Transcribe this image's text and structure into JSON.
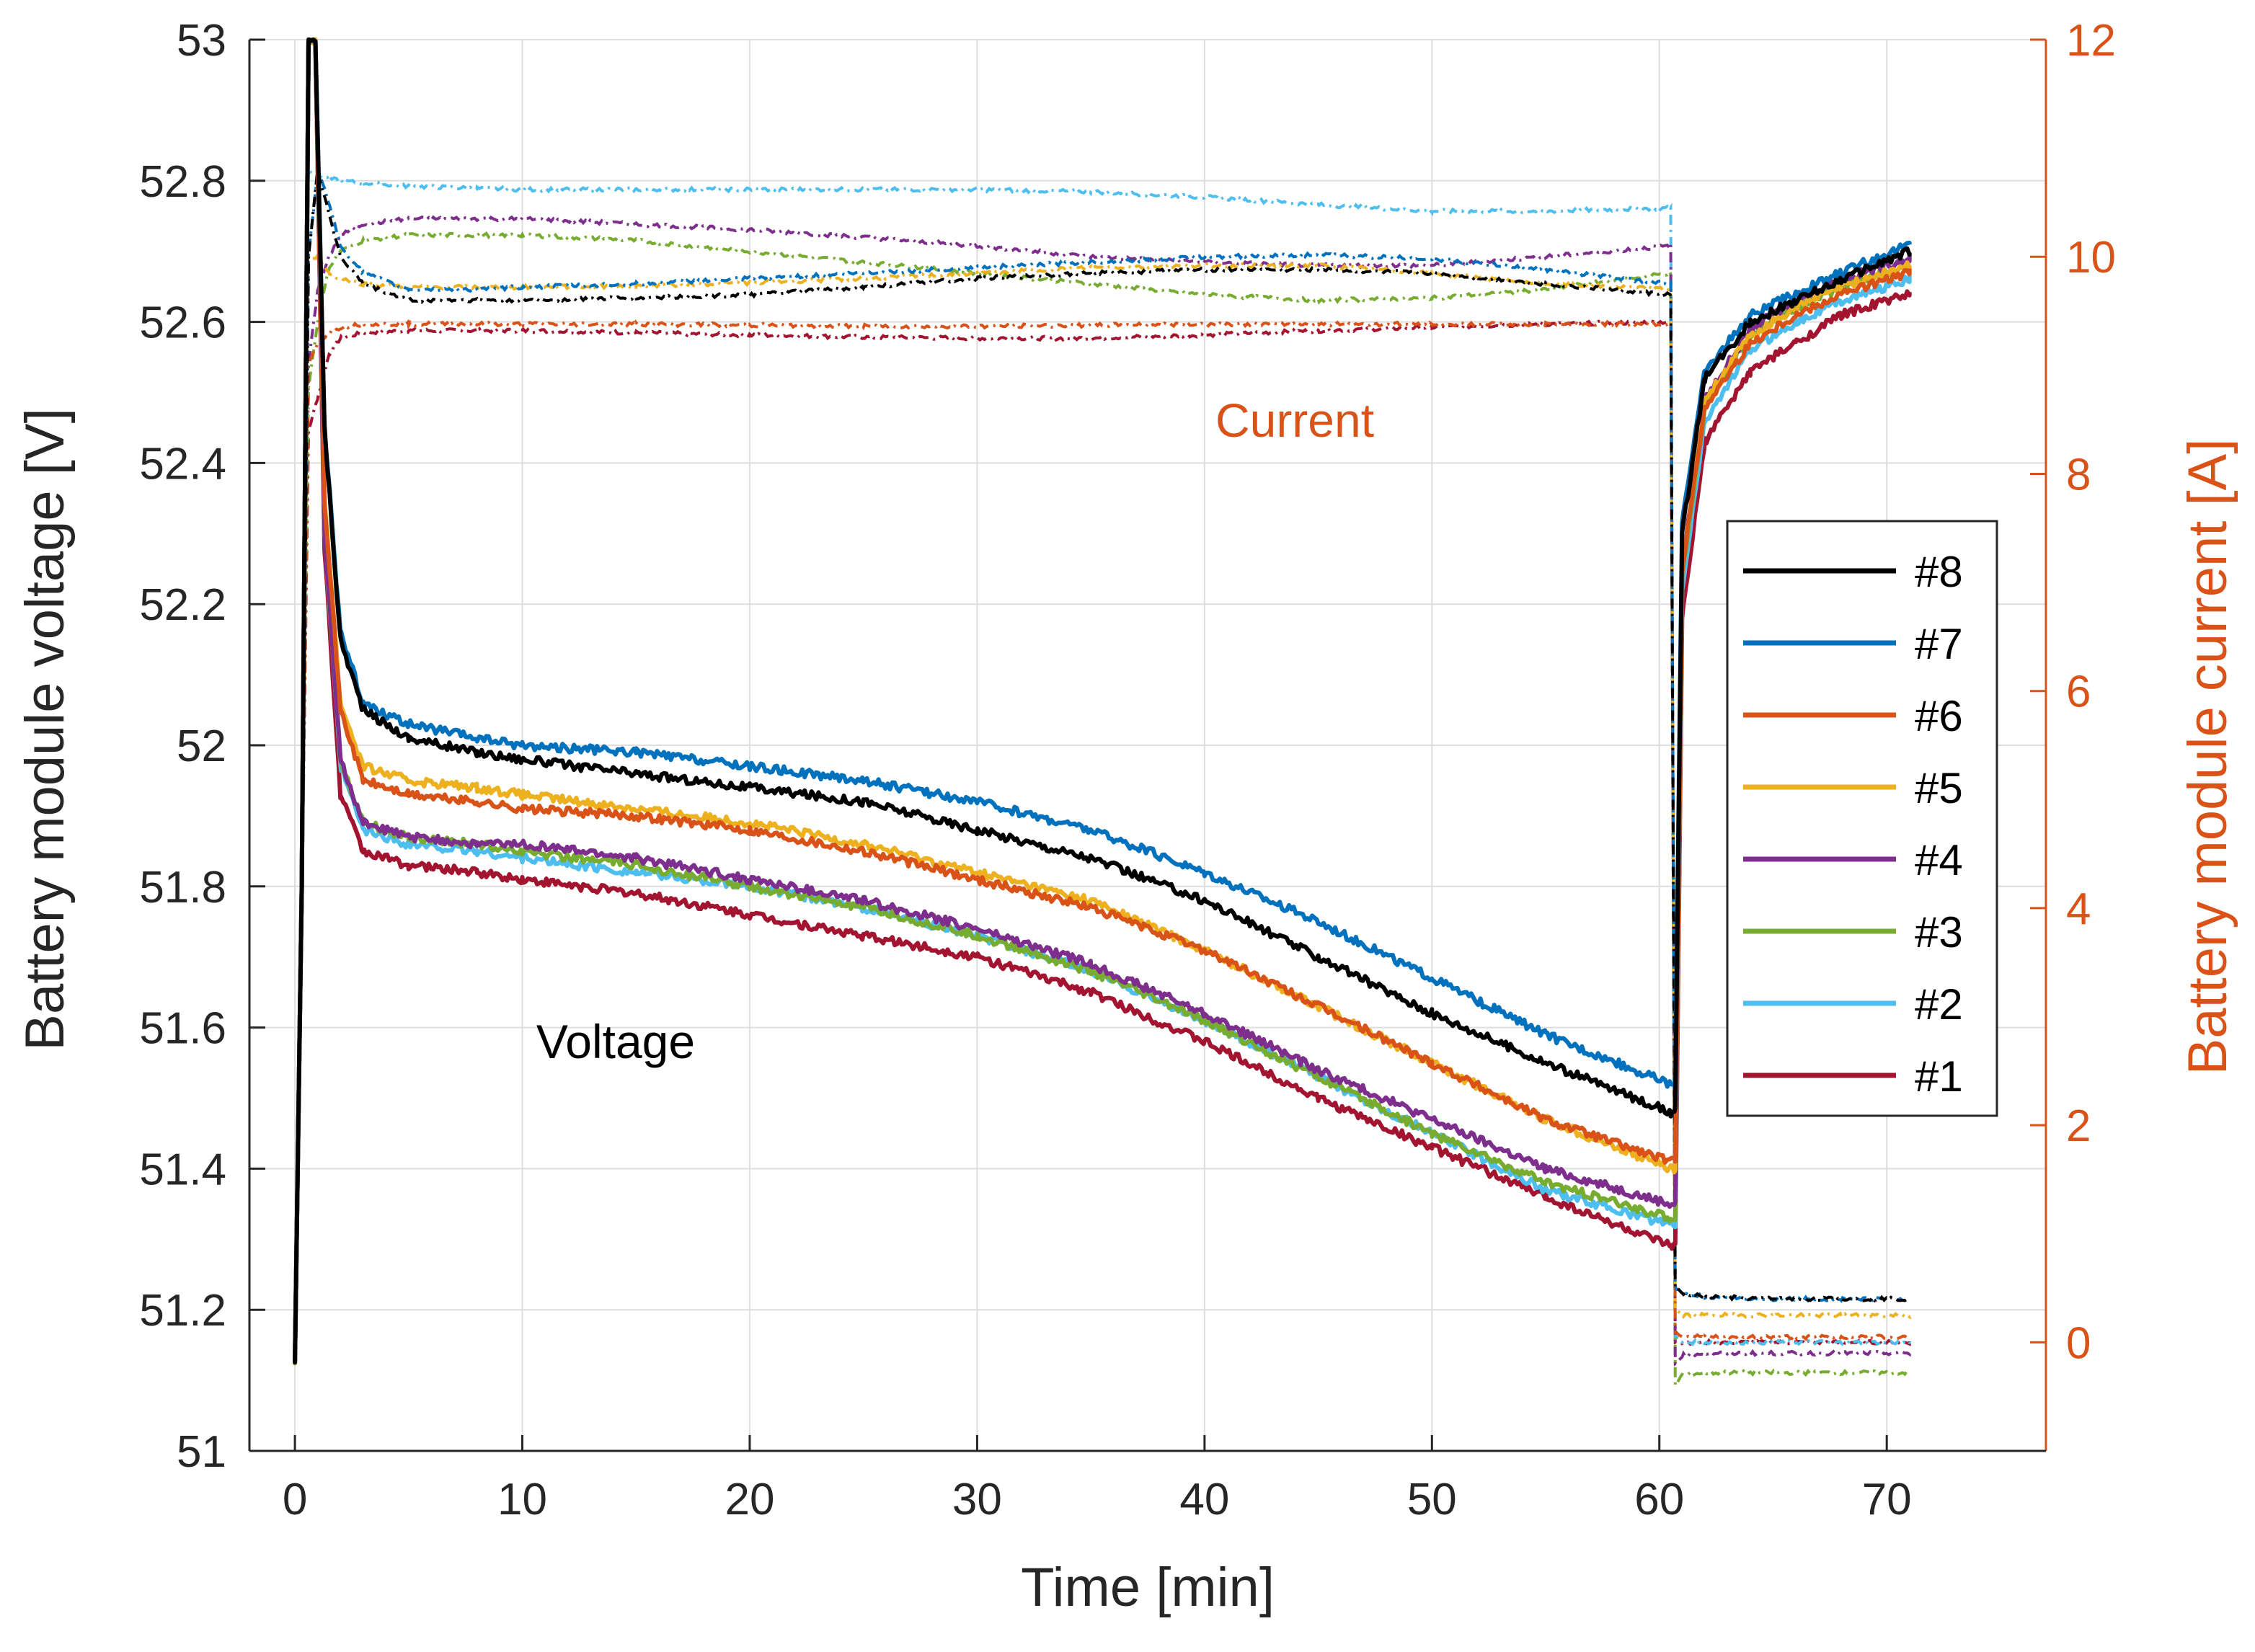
{
  "chart_data": {
    "type": "line",
    "title": "",
    "xlabel": "Time [min]",
    "ylabel": "Battery module voltage [V]",
    "y2label": "Battery module current [A]",
    "xlim": [
      -2,
      77
    ],
    "ylim": [
      51,
      53
    ],
    "y2lim": [
      -1,
      12
    ],
    "xticks": [
      0,
      10,
      20,
      30,
      40,
      50,
      60,
      70
    ],
    "xtick_labels": [
      "0",
      "10",
      "20",
      "30",
      "40",
      "50",
      "60",
      "70"
    ],
    "yticks": [
      51,
      51.2,
      51.4,
      51.6,
      51.8,
      52,
      52.2,
      52.4,
      52.6,
      52.8,
      53
    ],
    "ytick_labels": [
      "51",
      "51.2",
      "51.4",
      "51.6",
      "51.8",
      "52",
      "52.2",
      "52.4",
      "52.6",
      "52.8",
      "53"
    ],
    "y2ticks": [
      0,
      2,
      4,
      6,
      8,
      10,
      12
    ],
    "y2tick_labels": [
      "0",
      "2",
      "4",
      "6",
      "8",
      "10",
      "12"
    ],
    "grid": true,
    "legend_position": "right",
    "axis_color_right": "#D95319",
    "annotations": [
      {
        "text": "Current",
        "x": 44,
        "y2": 8.4,
        "color": "#D95319"
      },
      {
        "text": "Voltage",
        "x": 14,
        "y": 51.58,
        "color": "#000000"
      }
    ],
    "voltage_x": [
      0,
      0.3,
      0.6,
      0.9,
      1.3,
      2,
      3,
      5,
      8,
      10,
      15,
      20,
      25,
      30,
      35,
      40,
      45,
      50,
      55,
      60.5,
      60.7,
      61,
      62,
      64,
      66,
      68,
      71
    ],
    "current_x": [
      0,
      0.3,
      0.6,
      1,
      1.5,
      2,
      3,
      5,
      8,
      10,
      15,
      20,
      25,
      30,
      35,
      40,
      45,
      50,
      55,
      60.5,
      60.7,
      61,
      62,
      65,
      68,
      71
    ],
    "series": [
      {
        "name": "#8",
        "color": "#000000",
        "voltage": [
          51.13,
          51.8,
          53.0,
          53.0,
          52.45,
          52.15,
          52.05,
          52.01,
          51.99,
          51.98,
          51.96,
          51.94,
          51.92,
          51.88,
          51.84,
          51.78,
          51.7,
          51.62,
          51.55,
          51.48,
          51.48,
          52.3,
          52.52,
          52.6,
          52.63,
          52.66,
          52.7
        ],
        "current": [
          0,
          4.0,
          10.0,
          10.8,
          10.4,
          10.0,
          9.75,
          9.6,
          9.6,
          9.6,
          9.62,
          9.65,
          9.72,
          9.8,
          9.85,
          9.88,
          9.88,
          9.85,
          9.75,
          9.65,
          0.5,
          0.45,
          0.42,
          0.4,
          0.4,
          0.4
        ]
      },
      {
        "name": "#7",
        "color": "#0072BD",
        "voltage": [
          51.13,
          51.8,
          53.0,
          53.0,
          52.45,
          52.16,
          52.06,
          52.03,
          52.01,
          52.0,
          51.99,
          51.97,
          51.95,
          51.92,
          51.88,
          51.82,
          51.75,
          51.67,
          51.59,
          51.52,
          51.52,
          52.32,
          52.53,
          52.61,
          52.64,
          52.67,
          52.71
        ],
        "current": [
          0,
          4.0,
          10.0,
          10.8,
          10.5,
          10.1,
          9.85,
          9.7,
          9.7,
          9.72,
          9.75,
          9.8,
          9.85,
          9.9,
          9.95,
          10.0,
          10.02,
          9.98,
          9.88,
          9.75,
          0.5,
          0.45,
          0.42,
          0.4,
          0.4,
          0.4
        ]
      },
      {
        "name": "#6",
        "color": "#D95319",
        "voltage": [
          51.13,
          51.8,
          53.0,
          53.0,
          52.35,
          52.05,
          51.95,
          51.93,
          51.92,
          51.91,
          51.9,
          51.88,
          51.85,
          51.81,
          51.77,
          51.71,
          51.63,
          51.55,
          51.47,
          51.41,
          51.41,
          52.25,
          52.48,
          52.57,
          52.61,
          52.64,
          52.67
        ],
        "current": [
          0,
          4.0,
          9.0,
          9.2,
          9.3,
          9.35,
          9.38,
          9.38,
          9.38,
          9.38,
          9.38,
          9.37,
          9.36,
          9.36,
          9.37,
          9.38,
          9.38,
          9.38,
          9.38,
          9.38,
          0.1,
          0.06,
          0.05,
          0.05,
          0.05,
          0.05
        ]
      },
      {
        "name": "#5",
        "color": "#EDB120",
        "voltage": [
          51.13,
          51.8,
          53.0,
          53.0,
          52.35,
          52.06,
          51.97,
          51.95,
          51.94,
          51.93,
          51.91,
          51.89,
          51.86,
          51.82,
          51.78,
          51.71,
          51.63,
          51.55,
          51.47,
          51.4,
          51.4,
          52.25,
          52.49,
          52.58,
          52.62,
          52.65,
          52.68
        ],
        "current": [
          0,
          4.0,
          10.0,
          10.0,
          9.85,
          9.8,
          9.75,
          9.72,
          9.72,
          9.72,
          9.73,
          9.76,
          9.8,
          9.85,
          9.9,
          9.92,
          9.92,
          9.85,
          9.75,
          9.7,
          0.3,
          0.25,
          0.25,
          0.25,
          0.25,
          0.25
        ]
      },
      {
        "name": "#4",
        "color": "#7E2F8E",
        "voltage": [
          51.13,
          51.8,
          53.0,
          53.0,
          52.3,
          51.98,
          51.89,
          51.87,
          51.86,
          51.86,
          51.84,
          51.81,
          51.78,
          51.74,
          51.69,
          51.62,
          51.54,
          51.47,
          51.4,
          51.35,
          51.35,
          52.25,
          52.49,
          52.59,
          52.63,
          52.66,
          52.69
        ],
        "current": [
          0,
          4.0,
          9.0,
          9.7,
          10.0,
          10.2,
          10.3,
          10.35,
          10.35,
          10.35,
          10.3,
          10.25,
          10.18,
          10.1,
          10.0,
          9.95,
          9.92,
          9.92,
          10.0,
          10.1,
          -0.2,
          -0.12,
          -0.1,
          -0.1,
          -0.1,
          -0.1
        ]
      },
      {
        "name": "#3",
        "color": "#77AC30",
        "voltage": [
          51.13,
          51.8,
          53.0,
          53.0,
          52.3,
          51.98,
          51.89,
          51.87,
          51.86,
          51.85,
          51.83,
          51.8,
          51.77,
          51.73,
          51.68,
          51.61,
          51.53,
          51.45,
          51.38,
          51.33,
          51.33,
          52.24,
          52.48,
          52.58,
          52.62,
          52.65,
          52.68
        ],
        "current": [
          0,
          4.0,
          8.8,
          9.4,
          9.9,
          10.05,
          10.15,
          10.2,
          10.2,
          10.2,
          10.15,
          10.05,
          9.95,
          9.85,
          9.75,
          9.65,
          9.6,
          9.62,
          9.7,
          9.85,
          -0.4,
          -0.3,
          -0.28,
          -0.28,
          -0.28,
          -0.28
        ]
      },
      {
        "name": "#2",
        "color": "#4DBEEE",
        "voltage": [
          51.13,
          51.8,
          53.0,
          53.0,
          52.3,
          51.97,
          51.88,
          51.86,
          51.85,
          51.84,
          51.82,
          51.8,
          51.77,
          51.73,
          51.68,
          51.61,
          51.53,
          51.45,
          51.37,
          51.32,
          51.32,
          52.22,
          52.46,
          52.56,
          52.6,
          52.63,
          52.66
        ],
        "current": [
          0,
          4.0,
          10.8,
          10.75,
          10.72,
          10.7,
          10.68,
          10.65,
          10.63,
          10.62,
          10.62,
          10.62,
          10.62,
          10.62,
          10.6,
          10.55,
          10.48,
          10.42,
          10.42,
          10.45,
          0.05,
          0.0,
          0.0,
          0.0,
          0.0,
          0.0
        ]
      },
      {
        "name": "#1",
        "color": "#A2142F",
        "voltage": [
          51.13,
          51.8,
          53.0,
          53.0,
          52.28,
          51.93,
          51.85,
          51.83,
          51.82,
          51.81,
          51.79,
          51.76,
          51.73,
          51.7,
          51.65,
          51.58,
          51.5,
          51.43,
          51.36,
          51.29,
          51.29,
          52.18,
          52.43,
          52.53,
          52.57,
          52.61,
          52.64
        ],
        "current": [
          0,
          4.0,
          8.4,
          8.7,
          9.1,
          9.25,
          9.3,
          9.32,
          9.32,
          9.32,
          9.3,
          9.28,
          9.26,
          9.25,
          9.25,
          9.28,
          9.32,
          9.35,
          9.38,
          9.4,
          0.0,
          0.0,
          0.0,
          0.0,
          0.0,
          0.0
        ]
      }
    ]
  }
}
